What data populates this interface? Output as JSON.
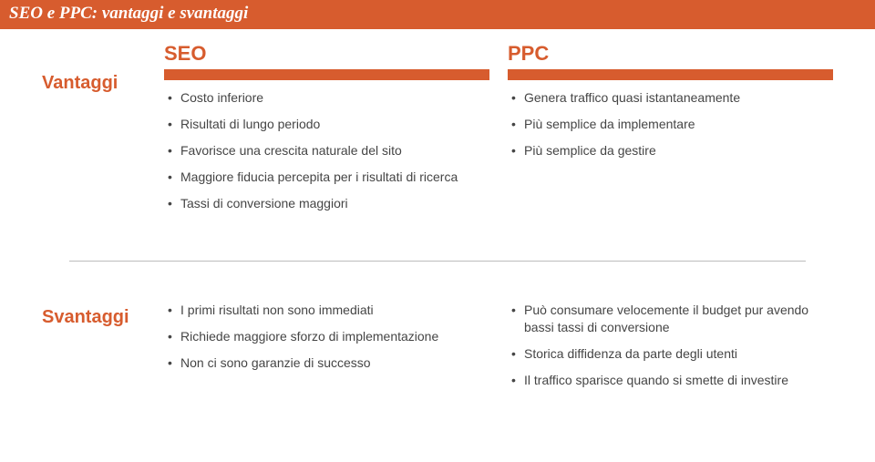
{
  "title": "SEO e PPC: vantaggi e svantaggi",
  "headers": {
    "seo": "SEO",
    "ppc": "PPC"
  },
  "rows": {
    "vantaggi": "Vantaggi",
    "svantaggi": "Svantaggi"
  },
  "vantaggi": {
    "seo": [
      "Costo inferiore",
      "Risultati di lungo periodo",
      "Favorisce una crescita naturale del sito",
      "Maggiore fiducia percepita per i risultati di ricerca",
      "Tassi di conversione maggiori"
    ],
    "ppc": [
      "Genera traffico quasi istantaneamente",
      "Più semplice da implementare",
      "Più semplice da gestire"
    ]
  },
  "svantaggi": {
    "seo": [
      "I primi risultati non sono immediati",
      "Richiede maggiore sforzo di implementazione",
      "Non ci sono garanzie di successo"
    ],
    "ppc": [
      "Può consumare velocemente il budget pur avendo bassi tassi di conversione",
      "Storica diffidenza da parte degli utenti",
      "Il traffico sparisce quando si smette di investire"
    ]
  },
  "colors": {
    "accent": "#d75c2e",
    "text": "#454545",
    "divider": "#bdbdbd",
    "background": "#ffffff",
    "title_text": "#ffffff"
  }
}
